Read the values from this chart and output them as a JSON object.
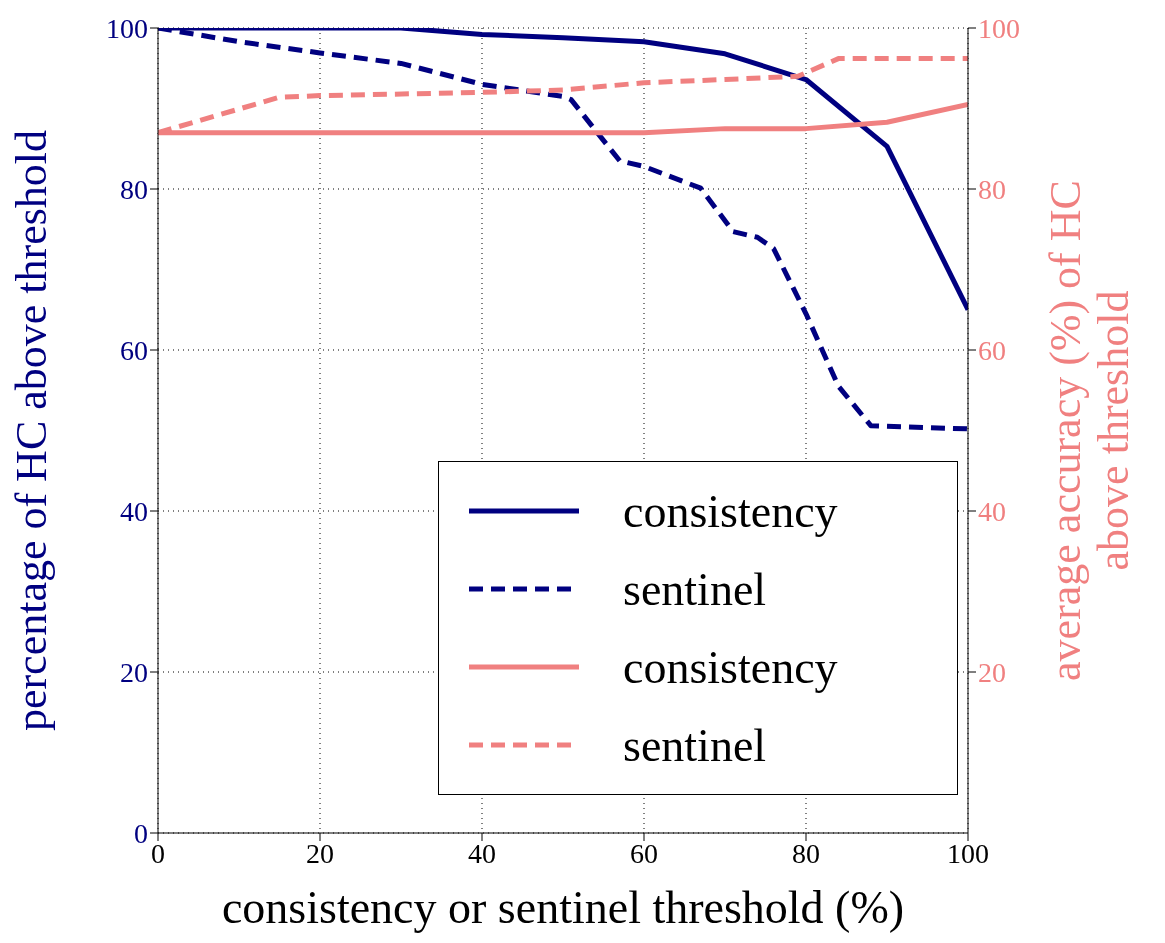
{
  "chart_data": {
    "type": "line",
    "xlabel": "consistency or sentinel threshold (%)",
    "ylabel": "percentage of HC above threshold",
    "y2label": "average accuracy (%) of HC\nabove threshold",
    "xlim": [
      0,
      100
    ],
    "xticks": [
      0,
      20,
      40,
      60,
      80,
      100
    ],
    "ylim": [
      0,
      100
    ],
    "yticks": [
      0,
      20,
      40,
      60,
      80,
      100
    ],
    "y2lim": [
      0,
      100
    ],
    "y2ticks": [
      20,
      40,
      60,
      80,
      100
    ],
    "grid": true,
    "legend": "bottom right",
    "marker": "none",
    "series": [
      {
        "name": "consistency",
        "color": "#000080",
        "line_style": "solid",
        "x": [
          0,
          30,
          40,
          50,
          60,
          70,
          80,
          90,
          100
        ],
        "values": [
          100,
          100,
          99.2,
          98.8,
          98.3,
          96.8,
          93.6,
          85.3,
          65
        ]
      },
      {
        "name": "sentinel",
        "color": "#000080",
        "line_style": "dashed",
        "x": [
          0,
          10,
          20,
          30,
          40,
          50,
          51,
          57,
          60,
          67,
          71,
          74,
          76,
          80,
          84,
          88,
          100
        ],
        "values": [
          100,
          98.3,
          96.9,
          95.6,
          93,
          91.5,
          91.1,
          83.5,
          82.8,
          80.1,
          74.7,
          74,
          72.6,
          64.5,
          55.5,
          50.6,
          50.2
        ]
      },
      {
        "name": "consistency",
        "color": "#f08080",
        "line_style": "solid",
        "axis": "y2",
        "x": [
          0,
          60,
          70,
          80,
          90,
          100
        ],
        "values": [
          87,
          87,
          87.5,
          87.5,
          88.3,
          90.5
        ]
      },
      {
        "name": "sentinel",
        "color": "#f08080",
        "line_style": "dashed",
        "axis": "y2",
        "x": [
          0,
          15,
          20,
          40,
          50,
          60,
          70,
          79,
          84,
          100
        ],
        "values": [
          87,
          91.4,
          91.6,
          92,
          92.3,
          93.2,
          93.6,
          94,
          96.2,
          96.2
        ]
      }
    ]
  }
}
